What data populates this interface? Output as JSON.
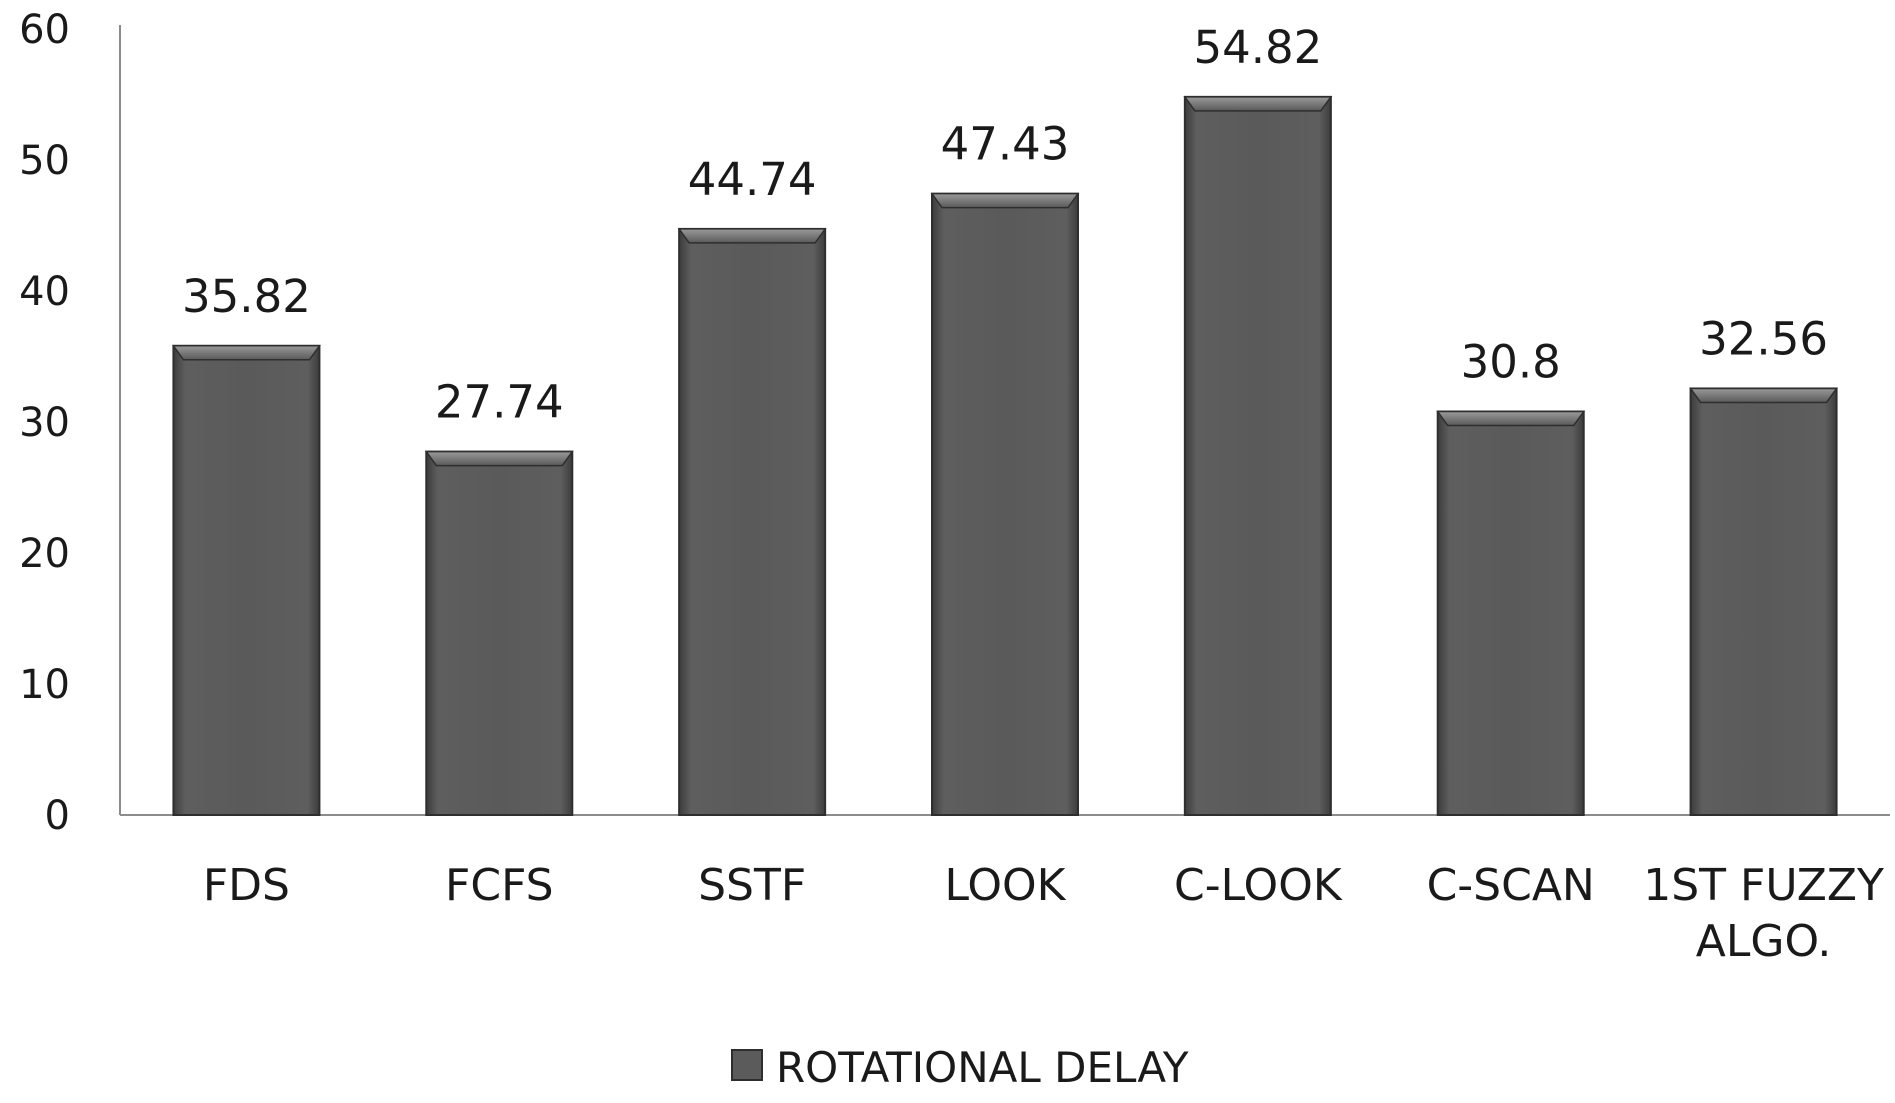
{
  "chart_data": {
    "type": "bar",
    "categories": [
      "FDS",
      "FCFS",
      "SSTF",
      "LOOK",
      "C-LOOK",
      "C-SCAN",
      "1ST FUZZY ALGO."
    ],
    "category_lines": [
      [
        "FDS"
      ],
      [
        "FCFS"
      ],
      [
        "SSTF"
      ],
      [
        "LOOK"
      ],
      [
        "C-LOOK"
      ],
      [
        "C-SCAN"
      ],
      [
        "1ST FUZZY",
        "ALGO."
      ]
    ],
    "series": [
      {
        "name": "ROTATIONAL DELAY",
        "values": [
          35.82,
          27.74,
          44.74,
          47.43,
          54.82,
          30.8,
          32.56
        ],
        "value_labels": [
          "35.82",
          "27.74",
          "44.74",
          "47.43",
          "54.82",
          "30.8",
          "32.56"
        ]
      }
    ],
    "title": "",
    "xlabel": "",
    "ylabel": "",
    "ylim": [
      0,
      60
    ],
    "yticks": [
      0,
      10,
      20,
      30,
      40,
      50,
      60
    ],
    "grid": false,
    "legend_position": "bottom",
    "colors": {
      "bar_fill": "#5b5b5b",
      "bar_edge": "#2e2e2e",
      "bar_bevel": "#8a8a8a",
      "axis": "#8c8c8c"
    }
  }
}
